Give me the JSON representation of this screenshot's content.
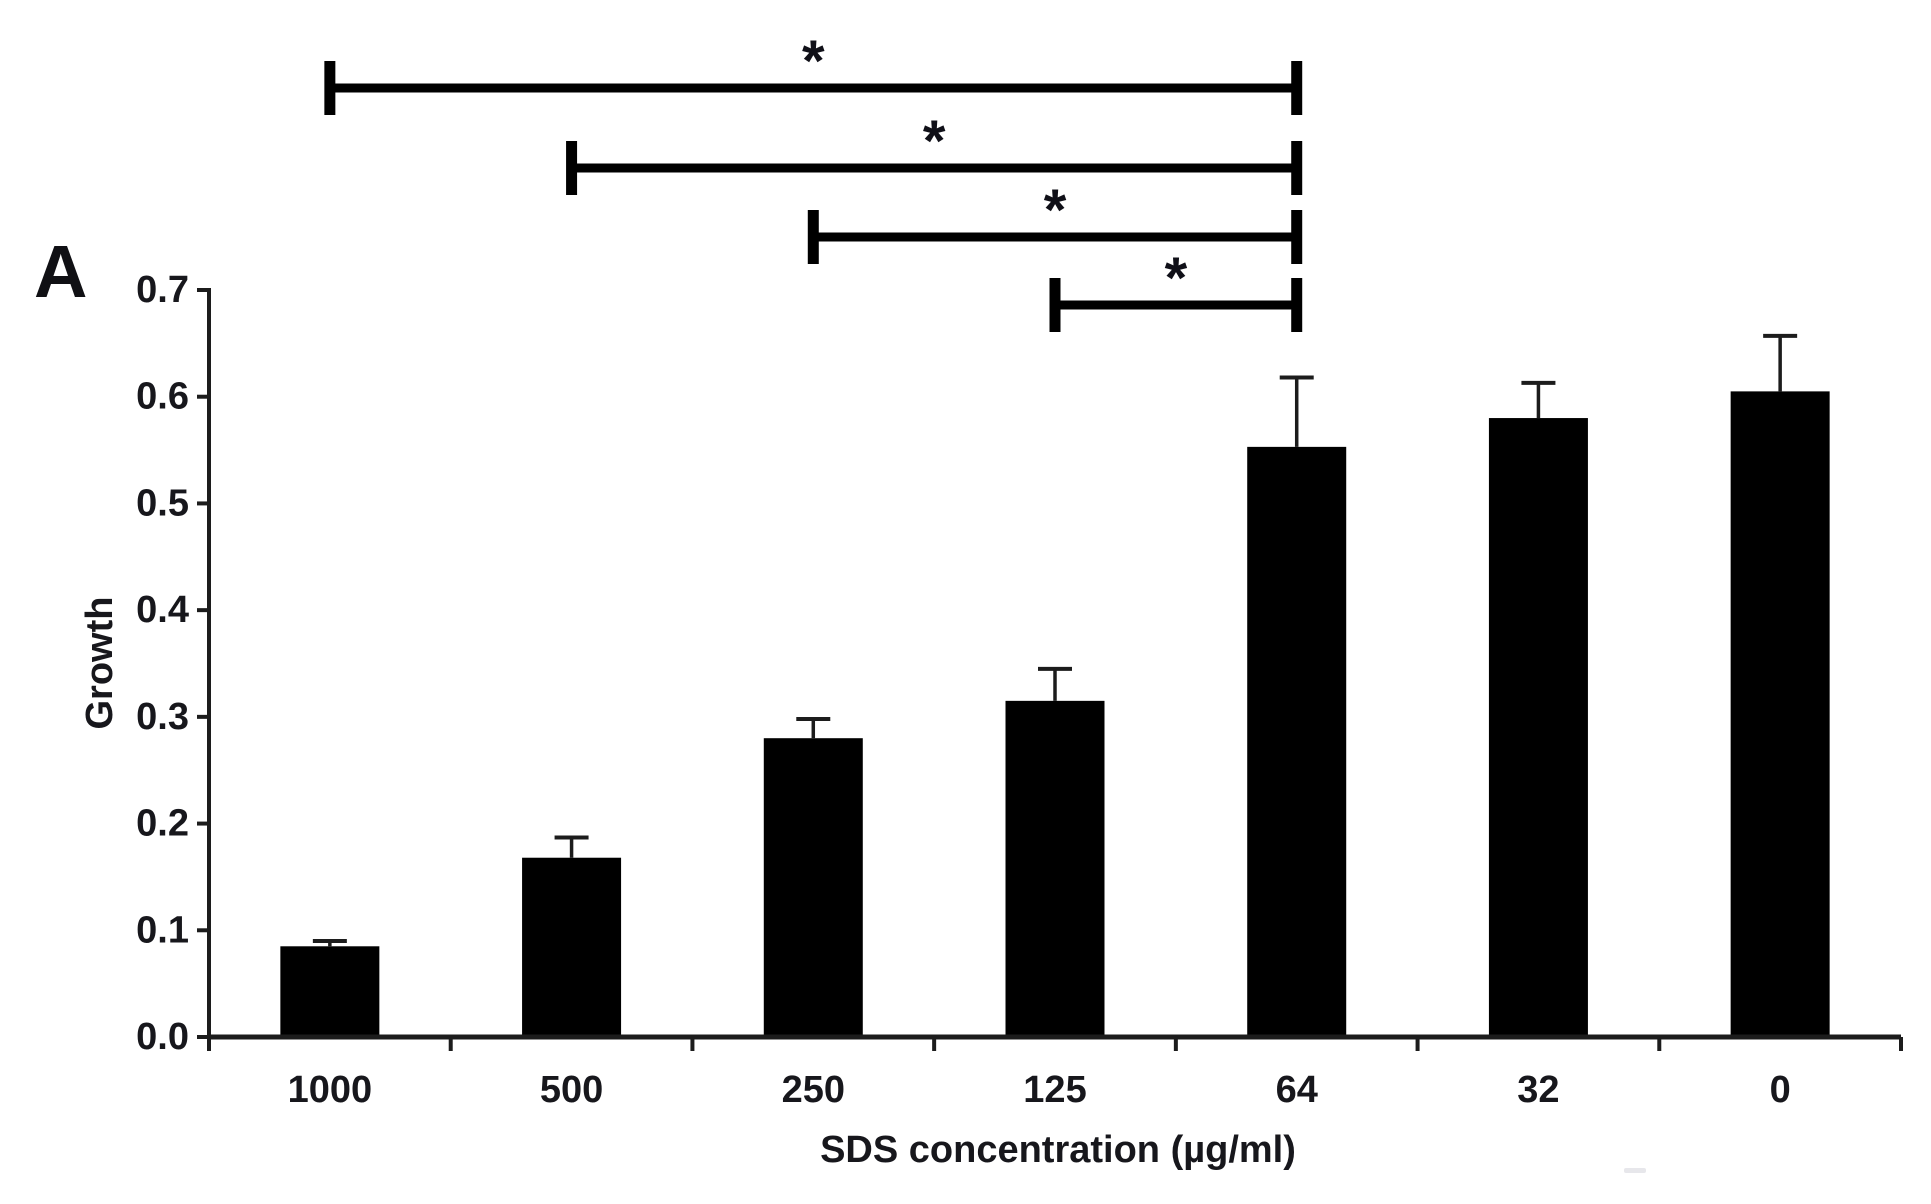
{
  "figure": {
    "panel_label": "A"
  },
  "chart_data": {
    "type": "bar",
    "title": "",
    "xlabel": "SDS concentration (µg/ml)",
    "ylabel": "Growth",
    "categories": [
      "1000",
      "500",
      "250",
      "125",
      "64",
      "32",
      "0"
    ],
    "values": [
      0.085,
      0.168,
      0.28,
      0.315,
      0.553,
      0.58,
      0.605
    ],
    "error_plus": [
      0.005,
      0.019,
      0.018,
      0.03,
      0.065,
      0.033,
      0.052
    ],
    "ylim": [
      0,
      0.7
    ],
    "ytick_step": 0.1,
    "ytick_labels": [
      "0.0",
      "0.1",
      "0.2",
      "0.3",
      "0.4",
      "0.5",
      "0.6",
      "0.7"
    ],
    "bar_color": "#000000",
    "axis_color": "#1c1c1c",
    "label_color": "#17171c",
    "grid": false,
    "legend": null,
    "significance_brackets": [
      {
        "from": "1000",
        "to": "64",
        "label": "*"
      },
      {
        "from": "500",
        "to": "64",
        "label": "*"
      },
      {
        "from": "250",
        "to": "64",
        "label": "*"
      },
      {
        "from": "125",
        "to": "64",
        "label": "*"
      }
    ]
  }
}
